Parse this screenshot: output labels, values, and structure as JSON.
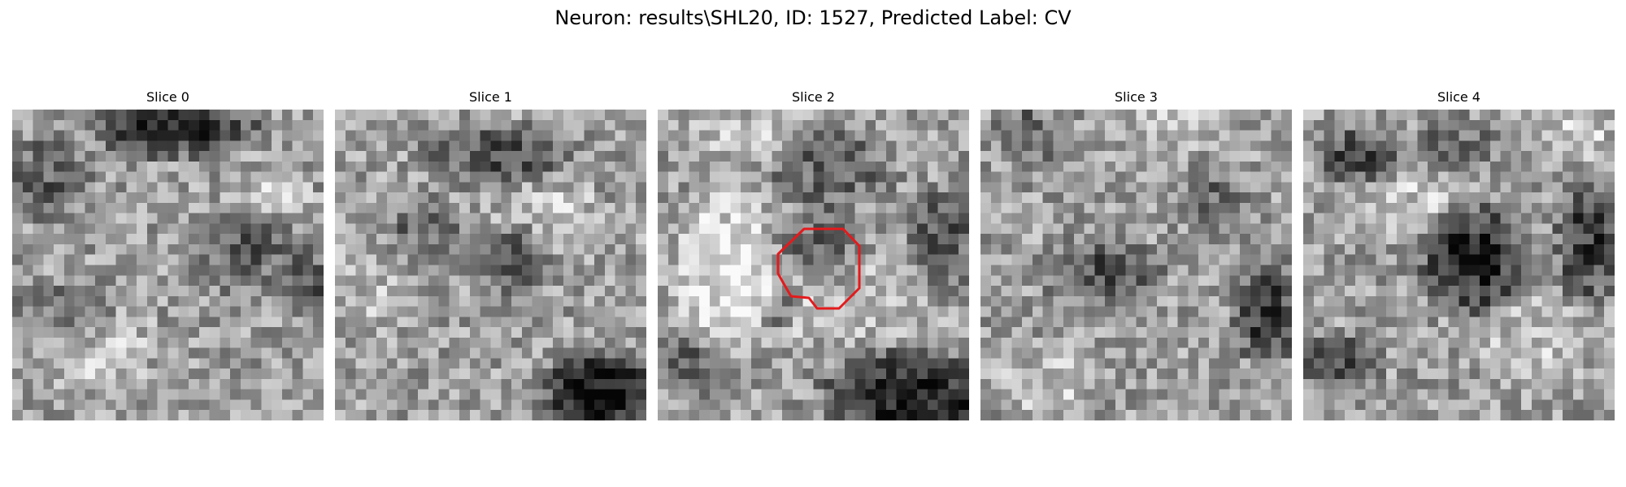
{
  "figure": {
    "title": "Neuron: results\\SHL20, ID: 1527, Predicted Label: CV"
  },
  "panels": [
    {
      "title": "Slice 0"
    },
    {
      "title": "Slice 1"
    },
    {
      "title": "Slice 2"
    },
    {
      "title": "Slice 3"
    },
    {
      "title": "Slice 4"
    }
  ],
  "overlay": {
    "contour_color": "#e41a1c",
    "slice_with_contour": 2
  }
}
